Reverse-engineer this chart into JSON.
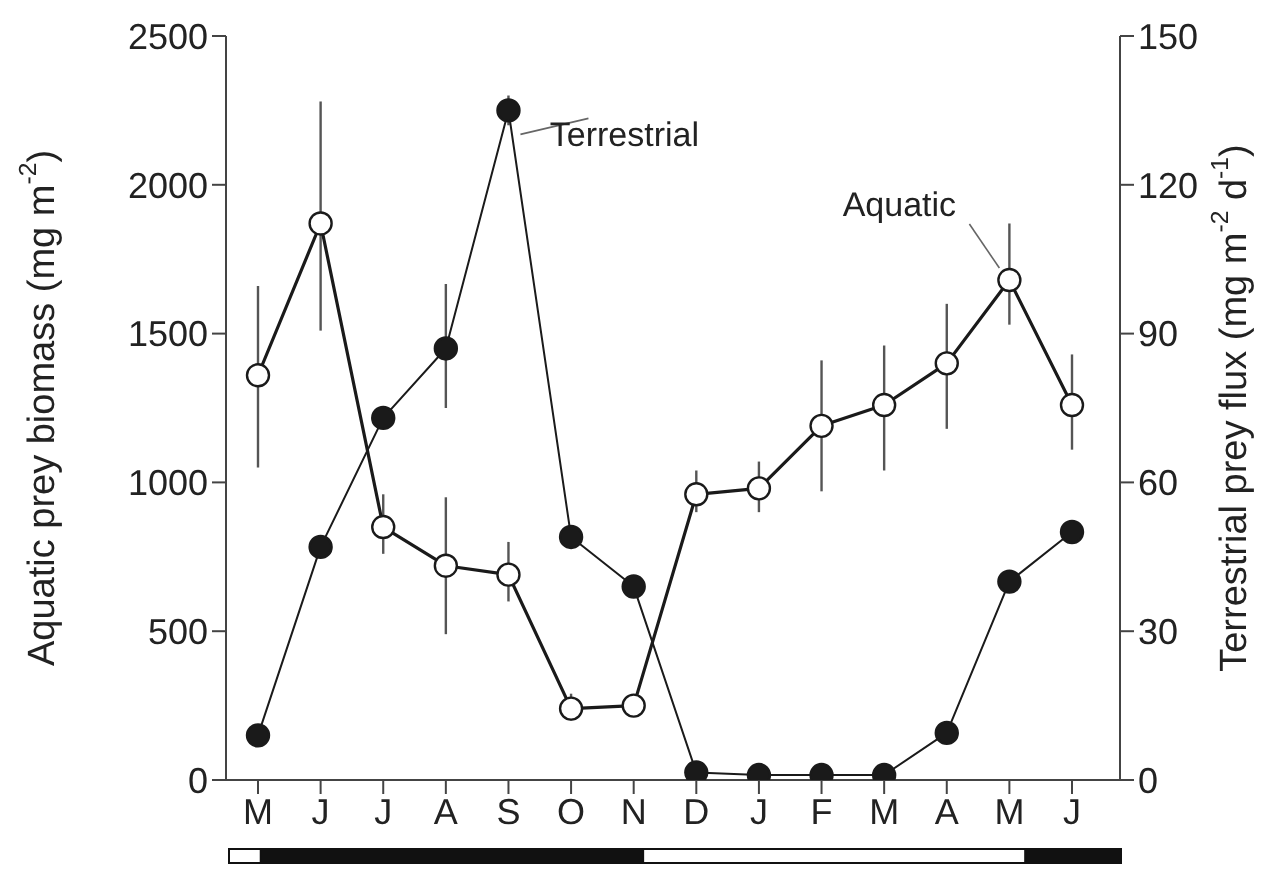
{
  "chart_data": {
    "type": "line",
    "categories": [
      "M",
      "J",
      "J",
      "A",
      "S",
      "O",
      "N",
      "D",
      "J",
      "F",
      "M",
      "A",
      "M",
      "J"
    ],
    "ylabel": "Aquatic prey biomass (mg m$^{-2}$)",
    "y2label": "Terrestrial prey flux (mg m$^{-2}$ d$^{-1}$)",
    "ylim": [
      0,
      2500
    ],
    "yticks": [
      0,
      500,
      1000,
      1500,
      2000,
      2500
    ],
    "y2lim": [
      0,
      150
    ],
    "y2ticks": [
      0,
      30,
      60,
      90,
      120,
      150
    ],
    "marker": "circle",
    "grid": false,
    "legend": false,
    "series": [
      {
        "name": "Aquatic",
        "color": "#1a1a1a",
        "axis": "y",
        "values": [
          1360,
          1870,
          850,
          720,
          690,
          240,
          250,
          960,
          980,
          1190,
          1260,
          1400,
          1680,
          1260
        ],
        "errors": [
          [
            1050,
            1660
          ],
          [
            1510,
            2280
          ],
          [
            760,
            960
          ],
          [
            490,
            950
          ],
          [
            600,
            800
          ],
          [
            200,
            290
          ],
          null,
          [
            900,
            1040
          ],
          [
            900,
            1070
          ],
          [
            970,
            1410
          ],
          [
            1040,
            1460
          ],
          [
            1180,
            1600
          ],
          [
            1530,
            1870
          ],
          [
            1110,
            1430
          ]
        ]
      },
      {
        "name": "Terrestrial",
        "color": "#1a1a1a",
        "axis": "y2",
        "values": [
          9,
          47,
          73,
          87,
          135,
          49,
          39,
          1.5,
          1,
          1,
          1,
          9.5,
          40,
          50
        ],
        "errors": [
          null,
          null,
          null,
          [
            75,
            100
          ],
          [
            132,
            138
          ],
          null,
          [
            37,
            41
          ],
          null,
          null,
          null,
          null,
          null,
          null,
          null
        ]
      }
    ]
  }
}
